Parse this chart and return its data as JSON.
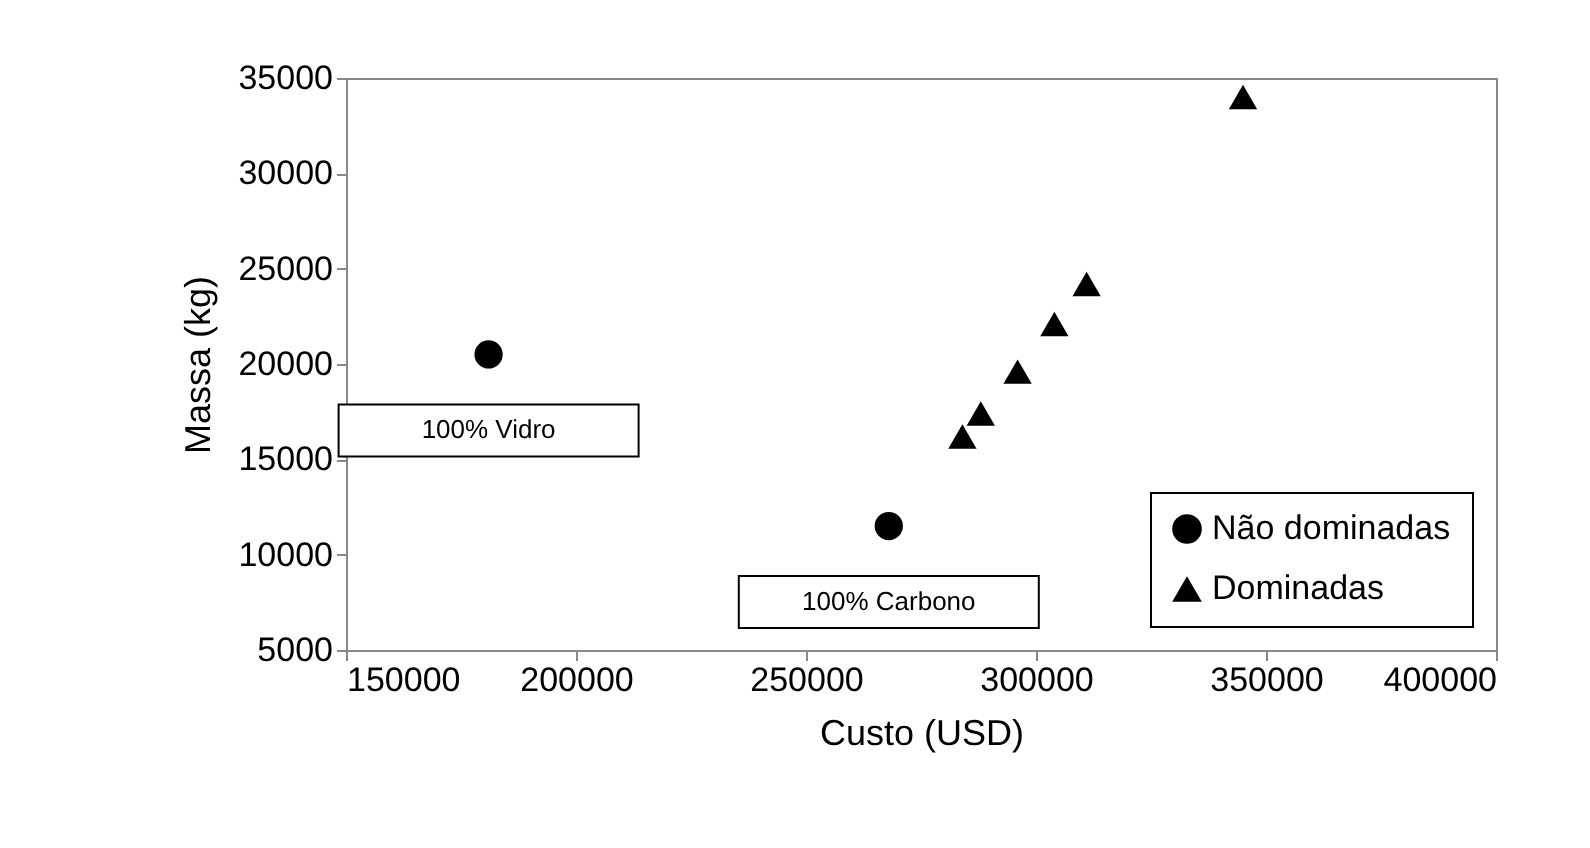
{
  "chart_data": {
    "type": "scatter",
    "xlabel": "Custo (USD)",
    "ylabel": "Massa (kg)",
    "xlim": [
      150000,
      400000
    ],
    "xticks": [
      150000,
      200000,
      250000,
      300000,
      350000,
      400000
    ],
    "ylim": [
      5000,
      35000
    ],
    "yticks": [
      5000,
      10000,
      15000,
      20000,
      25000,
      30000,
      35000
    ],
    "grid": false,
    "legend": "bottom right",
    "series": [
      {
        "name": "Não dominadas",
        "color": "#000000",
        "marker": "circle",
        "x": [
          181000,
          268000
        ],
        "values": [
          20500,
          11500
        ]
      },
      {
        "name": "Dominadas",
        "color": "#000000",
        "marker": "triangle",
        "x": [
          284000,
          288000,
          296000,
          304000,
          311000,
          345000
        ],
        "values": [
          16200,
          17400,
          19600,
          22100,
          24200,
          34000
        ]
      }
    ],
    "annotations": [
      {
        "text": "100% Vidro",
        "x": 181000,
        "y": 20500
      },
      {
        "text": "100% Carbono",
        "x": 268000,
        "y": 11500
      }
    ]
  }
}
